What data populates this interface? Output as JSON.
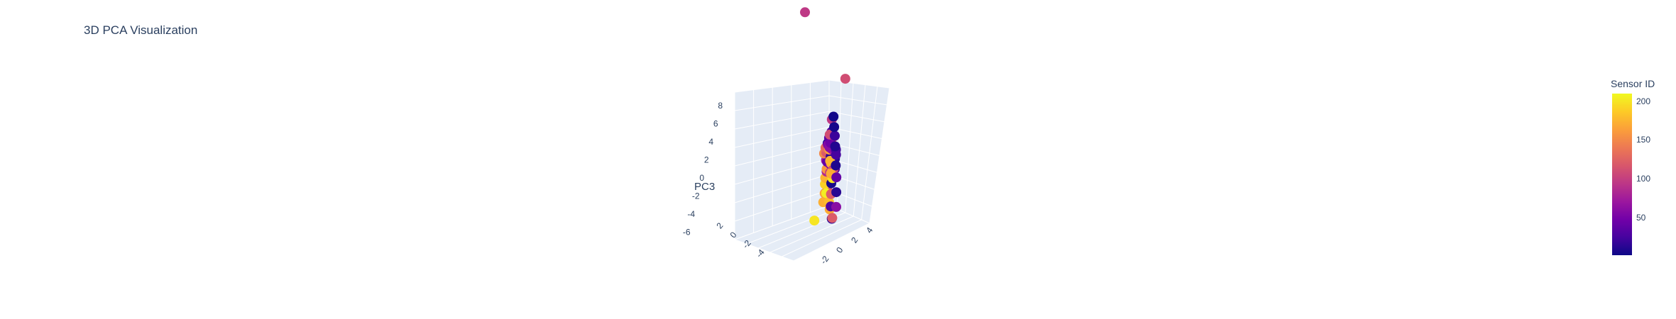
{
  "chart_data": {
    "type": "scatter3d",
    "title": "3D PCA Visualization",
    "axes": {
      "x": {
        "title": "",
        "ticks": [
          "4",
          "2",
          "0",
          "-2"
        ]
      },
      "y": {
        "title": "",
        "ticks": [
          "2",
          "0",
          "-2",
          "-4"
        ]
      },
      "z": {
        "title": "PC3",
        "ticks": [
          "8",
          "6",
          "4",
          "2",
          "0",
          "-2",
          "-4",
          "-6"
        ]
      }
    },
    "colorbar": {
      "title": "Sensor ID",
      "range": [
        1,
        210
      ],
      "ticks": [
        "200",
        "150",
        "100",
        "50"
      ],
      "tickvals": [
        200,
        150,
        100,
        50
      ],
      "colorscale": [
        "#0d0887",
        "#46039f",
        "#7201a8",
        "#9c179e",
        "#bd3786",
        "#d8576b",
        "#ed7953",
        "#fb9f3a",
        "#fdca26",
        "#f0f921"
      ]
    },
    "points": [
      {
        "x": -0.6,
        "y": 2.0,
        "z": 6.2,
        "sensor": 110
      },
      {
        "x": -3.0,
        "y": -3.5,
        "z": 8.1,
        "sensor": 95
      },
      {
        "x": 1.4,
        "y": 0.9,
        "z": -2.9,
        "sensor": 200
      },
      {
        "x": -2.0,
        "y": -0.4,
        "z": -1.2,
        "sensor": 170
      },
      {
        "x": -2.4,
        "y": -0.8,
        "z": -0.6,
        "sensor": 175
      },
      {
        "x": -2.7,
        "y": -1.1,
        "z": 0.1,
        "sensor": 60
      },
      {
        "x": -2.2,
        "y": -0.6,
        "z": 0.7,
        "sensor": 45
      },
      {
        "x": -1.7,
        "y": -0.3,
        "z": 0.5,
        "sensor": 165
      },
      {
        "x": -1.4,
        "y": 0.1,
        "z": -0.2,
        "sensor": 170
      },
      {
        "x": -1.0,
        "y": 0.5,
        "z": -0.5,
        "sensor": 180
      },
      {
        "x": -0.6,
        "y": 0.9,
        "z": -0.4,
        "sensor": 150
      },
      {
        "x": -0.2,
        "y": 1.3,
        "z": 0.2,
        "sensor": 110
      },
      {
        "x": 0.3,
        "y": 1.6,
        "z": -0.2,
        "sensor": 200
      },
      {
        "x": 0.8,
        "y": 1.9,
        "z": -0.3,
        "sensor": 5
      },
      {
        "x": 1.2,
        "y": 2.2,
        "z": -0.8,
        "sensor": 120
      },
      {
        "x": 1.6,
        "y": 2.5,
        "z": -1.4,
        "sensor": 30
      },
      {
        "x": 1.8,
        "y": 2.8,
        "z": -2.0,
        "sensor": 120
      },
      {
        "x": 2.1,
        "y": 3.0,
        "z": -1.9,
        "sensor": 15
      },
      {
        "x": 1.0,
        "y": 2.5,
        "z": -1.6,
        "sensor": 60
      },
      {
        "x": 0.5,
        "y": 2.1,
        "z": -0.9,
        "sensor": 12
      },
      {
        "x": 0.0,
        "y": 1.7,
        "z": -0.2,
        "sensor": 40
      },
      {
        "x": -0.3,
        "y": 1.4,
        "z": 0.4,
        "sensor": 8
      },
      {
        "x": -0.7,
        "y": 1.1,
        "z": 0.9,
        "sensor": 25
      },
      {
        "x": -1.1,
        "y": 0.7,
        "z": 1.2,
        "sensor": 10
      },
      {
        "x": -1.4,
        "y": 0.4,
        "z": 1.7,
        "sensor": 90
      },
      {
        "x": -1.8,
        "y": 0.1,
        "z": 1.5,
        "sensor": 20
      },
      {
        "x": -2.1,
        "y": -0.2,
        "z": 1.9,
        "sensor": 5
      },
      {
        "x": -1.6,
        "y": 0.0,
        "z": 2.6,
        "sensor": 95
      },
      {
        "x": -2.4,
        "y": -0.5,
        "z": 2.4,
        "sensor": 3
      },
      {
        "x": -1.2,
        "y": 0.3,
        "z": 2.0,
        "sensor": 30
      },
      {
        "x": -0.8,
        "y": 0.6,
        "z": 1.6,
        "sensor": 140
      },
      {
        "x": -0.4,
        "y": 1.0,
        "z": 1.3,
        "sensor": 70
      },
      {
        "x": 0.0,
        "y": 1.2,
        "z": 1.0,
        "sensor": 15
      },
      {
        "x": 0.4,
        "y": 1.5,
        "z": 0.7,
        "sensor": 50
      },
      {
        "x": 0.7,
        "y": 1.7,
        "z": 0.3,
        "sensor": 100
      },
      {
        "x": 0.2,
        "y": 1.0,
        "z": 0.0,
        "sensor": 85
      },
      {
        "x": -0.1,
        "y": 0.8,
        "z": 0.5,
        "sensor": 40
      },
      {
        "x": -0.5,
        "y": 0.4,
        "z": 0.9,
        "sensor": 18
      },
      {
        "x": -0.9,
        "y": 0.2,
        "z": 1.3,
        "sensor": 7
      },
      {
        "x": -1.3,
        "y": -0.1,
        "z": 1.0,
        "sensor": 55
      },
      {
        "x": -1.0,
        "y": 0.0,
        "z": 0.6,
        "sensor": 120
      },
      {
        "x": -0.6,
        "y": 0.3,
        "z": 0.3,
        "sensor": 75
      },
      {
        "x": -0.3,
        "y": 0.6,
        "z": -0.1,
        "sensor": 160
      },
      {
        "x": 0.1,
        "y": 0.8,
        "z": -0.5,
        "sensor": 175
      },
      {
        "x": 0.5,
        "y": 1.1,
        "z": -0.7,
        "sensor": 190
      },
      {
        "x": 0.9,
        "y": 1.4,
        "z": -1.1,
        "sensor": 165
      },
      {
        "x": 1.3,
        "y": 1.6,
        "z": -1.5,
        "sensor": 172
      },
      {
        "x": 0.6,
        "y": 1.3,
        "z": -1.2,
        "sensor": 205
      },
      {
        "x": -1.5,
        "y": -0.6,
        "z": 0.2,
        "sensor": 150
      },
      {
        "x": -1.9,
        "y": -0.8,
        "z": 0.4,
        "sensor": 130
      },
      {
        "x": -2.6,
        "y": -1.0,
        "z": 1.0,
        "sensor": 110
      },
      {
        "x": -2.9,
        "y": -1.3,
        "z": 0.6,
        "sensor": 35
      },
      {
        "x": -0.2,
        "y": 1.5,
        "z": 1.5,
        "sensor": 22
      },
      {
        "x": 0.4,
        "y": 1.9,
        "z": 1.2,
        "sensor": 12
      },
      {
        "x": 0.9,
        "y": 2.3,
        "z": 0.8,
        "sensor": 28
      },
      {
        "x": 1.1,
        "y": 2.0,
        "z": 1.1,
        "sensor": 105
      },
      {
        "x": 0.6,
        "y": 1.6,
        "z": 1.8,
        "sensor": 3
      },
      {
        "x": -0.1,
        "y": 1.1,
        "z": 2.1,
        "sensor": 8
      },
      {
        "x": 1.7,
        "y": 2.3,
        "z": -0.4,
        "sensor": 110
      },
      {
        "x": 1.9,
        "y": 2.6,
        "z": -1.0,
        "sensor": 180
      },
      {
        "x": 2.2,
        "y": 2.9,
        "z": -1.3,
        "sensor": 170
      }
    ]
  }
}
